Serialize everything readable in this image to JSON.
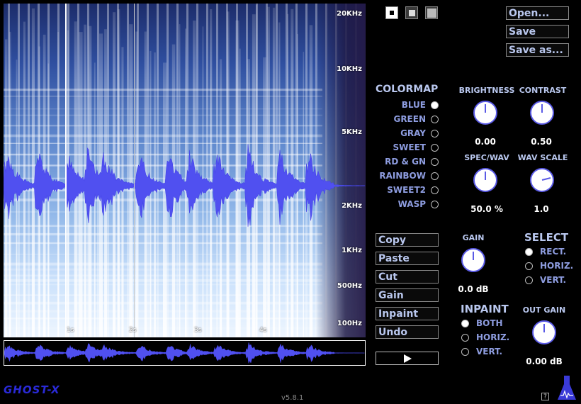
{
  "freq_labels": [
    "20KHz",
    "10KHz",
    "5KHz",
    "2KHz",
    "1KHz",
    "500Hz",
    "100Hz"
  ],
  "time_labels": [
    "1s",
    "2s",
    "3s",
    "4s"
  ],
  "view_buttons": [
    {
      "icon": "small-square-icon"
    },
    {
      "icon": "medium-square-icon"
    },
    {
      "icon": "large-square-icon"
    }
  ],
  "file": {
    "open": "Open...",
    "save": "Save",
    "save_as": "Save as..."
  },
  "colormap": {
    "title": "COLORMAP",
    "options": [
      "BLUE",
      "GREEN",
      "GRAY",
      "SWEET",
      "RD & GN",
      "RAINBOW",
      "SWEET2",
      "WASP"
    ],
    "selected": "BLUE"
  },
  "knobs": {
    "brightness": {
      "label": "BRIGHTNESS",
      "value": "0.00"
    },
    "contrast": {
      "label": "CONTRAST",
      "value": "0.50"
    },
    "spec_wav": {
      "label": "SPEC/WAV",
      "value": "50.0 %"
    },
    "wav_scale": {
      "label": "WAV SCALE",
      "value": "1.0"
    },
    "gain": {
      "label": "GAIN",
      "value": "0.0 dB"
    },
    "out_gain": {
      "label": "OUT GAIN",
      "value": "0.00 dB"
    }
  },
  "edit": {
    "copy": "Copy",
    "paste": "Paste",
    "cut": "Cut",
    "gain": "Gain",
    "inpaint": "Inpaint",
    "undo": "Undo"
  },
  "select": {
    "title": "SELECT",
    "options": [
      "RECT.",
      "HORIZ.",
      "VERT."
    ],
    "selected": "RECT."
  },
  "inpaint": {
    "title": "INPAINT",
    "options": [
      "BOTH",
      "HORIZ.",
      "VERT."
    ],
    "selected": "BOTH"
  },
  "brand": {
    "logo": "GHOST-X",
    "version": "v5.8.1",
    "help": "?"
  },
  "colors": {
    "accent": "#5a5ae6",
    "label": "#b9c7ee",
    "radio_label": "#8e9de0",
    "wave": "#5050f0"
  }
}
